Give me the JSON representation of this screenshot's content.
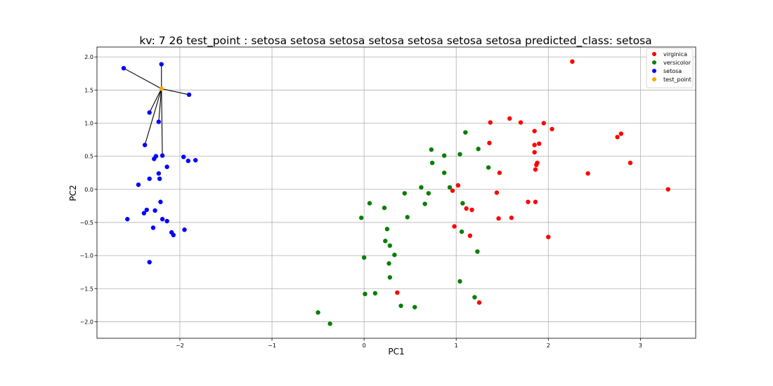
{
  "chart_data": {
    "type": "scatter",
    "title": "kv: 7 26 test_point : setosa setosa setosa setosa setosa setosa setosa   predicted_class: setosa",
    "xlabel": "PC1",
    "ylabel": "PC2",
    "xlim": [
      -2.9,
      3.6
    ],
    "ylim": [
      -2.25,
      2.15
    ],
    "xticks": [
      -2,
      -1,
      0,
      1,
      2,
      3
    ],
    "xtick_labels": [
      "−2",
      "−1",
      "0",
      "1",
      "2",
      "3"
    ],
    "yticks": [
      -2.0,
      -1.5,
      -1.0,
      -0.5,
      0.0,
      0.5,
      1.0,
      1.5,
      2.0
    ],
    "ytick_labels": [
      "−2.0",
      "−1.5",
      "−1.0",
      "−0.5",
      "0.0",
      "0.5",
      "1.0",
      "1.5",
      "2.0"
    ],
    "grid": true,
    "legend_position": "top-right",
    "test_point": {
      "x": -2.2,
      "y": 1.52
    },
    "neighbors": [
      [
        -2.2,
        1.89
      ],
      [
        -2.61,
        1.83
      ],
      [
        -1.9,
        1.43
      ],
      [
        -2.33,
        1.16
      ],
      [
        -2.23,
        1.02
      ],
      [
        -2.38,
        0.67
      ],
      [
        -2.19,
        0.51
      ]
    ],
    "series": [
      {
        "name": "virginica",
        "color": "#ff0000",
        "points": [
          [
            2.26,
            1.93
          ],
          [
            1.58,
            1.07
          ],
          [
            1.7,
            1.01
          ],
          [
            1.37,
            1.01
          ],
          [
            1.95,
            1.0
          ],
          [
            2.04,
            0.91
          ],
          [
            1.85,
            0.88
          ],
          [
            2.79,
            0.84
          ],
          [
            2.75,
            0.79
          ],
          [
            1.36,
            0.7
          ],
          [
            1.9,
            0.69
          ],
          [
            1.85,
            0.67
          ],
          [
            1.85,
            0.56
          ],
          [
            2.89,
            0.4
          ],
          [
            1.88,
            0.4
          ],
          [
            1.87,
            0.37
          ],
          [
            1.86,
            0.3
          ],
          [
            1.47,
            0.25
          ],
          [
            2.43,
            0.24
          ],
          [
            1.02,
            0.06
          ],
          [
            3.3,
            0.0
          ],
          [
            0.96,
            -0.02
          ],
          [
            1.44,
            -0.05
          ],
          [
            1.78,
            -0.19
          ],
          [
            1.86,
            -0.19
          ],
          [
            1.11,
            -0.29
          ],
          [
            1.17,
            -0.31
          ],
          [
            1.46,
            -0.44
          ],
          [
            1.6,
            -0.43
          ],
          [
            0.98,
            -0.56
          ],
          [
            1.15,
            -0.7
          ],
          [
            2.0,
            -0.72
          ],
          [
            0.36,
            -1.56
          ],
          [
            1.25,
            -1.71
          ]
        ]
      },
      {
        "name": "versicolor",
        "color": "#008000",
        "points": [
          [
            1.1,
            0.86
          ],
          [
            0.73,
            0.6
          ],
          [
            1.24,
            0.61
          ],
          [
            1.04,
            0.53
          ],
          [
            0.87,
            0.51
          ],
          [
            0.74,
            0.4
          ],
          [
            1.35,
            0.33
          ],
          [
            0.87,
            0.25
          ],
          [
            0.62,
            0.03
          ],
          [
            0.93,
            0.03
          ],
          [
            0.7,
            -0.06
          ],
          [
            0.44,
            -0.06
          ],
          [
            0.06,
            -0.21
          ],
          [
            0.66,
            -0.22
          ],
          [
            1.07,
            -0.21
          ],
          [
            0.22,
            -0.28
          ],
          [
            -0.03,
            -0.43
          ],
          [
            0.47,
            -0.42
          ],
          [
            0.25,
            -0.6
          ],
          [
            1.06,
            -0.64
          ],
          [
            0.23,
            -0.78
          ],
          [
            0.28,
            -0.85
          ],
          [
            1.23,
            -0.94
          ],
          [
            0.33,
            -0.99
          ],
          [
            0.0,
            -1.03
          ],
          [
            0.27,
            -1.12
          ],
          [
            0.28,
            -1.33
          ],
          [
            1.04,
            -1.39
          ],
          [
            0.01,
            -1.58
          ],
          [
            0.12,
            -1.57
          ],
          [
            1.2,
            -1.63
          ],
          [
            0.4,
            -1.76
          ],
          [
            0.55,
            -1.78
          ],
          [
            -0.5,
            -1.86
          ],
          [
            -0.37,
            -2.03
          ]
        ]
      },
      {
        "name": "setosa",
        "color": "#0000ff",
        "points": [
          [
            -2.2,
            1.89
          ],
          [
            -2.61,
            1.83
          ],
          [
            -1.9,
            1.43
          ],
          [
            -2.33,
            1.16
          ],
          [
            -2.23,
            1.02
          ],
          [
            -2.38,
            0.67
          ],
          [
            -2.19,
            0.51
          ],
          [
            -2.26,
            0.5
          ],
          [
            -1.96,
            0.49
          ],
          [
            -2.28,
            0.46
          ],
          [
            -1.91,
            0.43
          ],
          [
            -1.83,
            0.44
          ],
          [
            -2.14,
            0.34
          ],
          [
            -2.23,
            0.24
          ],
          [
            -2.33,
            0.16
          ],
          [
            -2.22,
            0.16
          ],
          [
            -2.45,
            0.07
          ],
          [
            -2.21,
            -0.19
          ],
          [
            -2.36,
            -0.31
          ],
          [
            -2.27,
            -0.32
          ],
          [
            -2.39,
            -0.36
          ],
          [
            -2.57,
            -0.45
          ],
          [
            -2.19,
            -0.45
          ],
          [
            -2.14,
            -0.48
          ],
          [
            -2.29,
            -0.58
          ],
          [
            -1.95,
            -0.61
          ],
          [
            -2.09,
            -0.65
          ],
          [
            -2.07,
            -0.69
          ],
          [
            -2.33,
            -1.1
          ]
        ]
      },
      {
        "name": "test_point",
        "color": "#ffa500",
        "points": [
          [
            -2.2,
            1.52
          ]
        ]
      }
    ]
  }
}
